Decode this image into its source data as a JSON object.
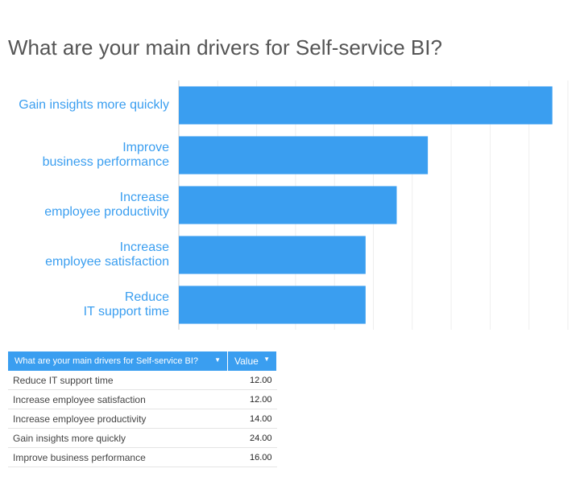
{
  "chart_data": {
    "type": "bar",
    "orientation": "horizontal",
    "title": "What are your main drivers for Self-service BI?",
    "categories": [
      "Gain insights more quickly",
      "Improve\nbusiness performance",
      "Increase\nemployee productivity",
      "Increase\nemployee satisfaction",
      "Reduce\nIT support time"
    ],
    "values": [
      24,
      16,
      14,
      12,
      12
    ],
    "color": "#3a9ef0",
    "xlim": [
      0,
      25
    ],
    "xticks": [
      0,
      2.5,
      5,
      7.5,
      10,
      12.5,
      15,
      17.5,
      20,
      22.5,
      25
    ],
    "grid": true
  },
  "table": {
    "header": [
      "What are your main drivers for Self-service BI?",
      "Value"
    ],
    "rows": [
      [
        "Reduce IT support time",
        "12.00"
      ],
      [
        "Increase employee satisfaction",
        "12.00"
      ],
      [
        "Increase employee productivity",
        "14.00"
      ],
      [
        "Gain insights more quickly",
        "24.00"
      ],
      [
        "Improve business performance",
        "16.00"
      ]
    ]
  }
}
